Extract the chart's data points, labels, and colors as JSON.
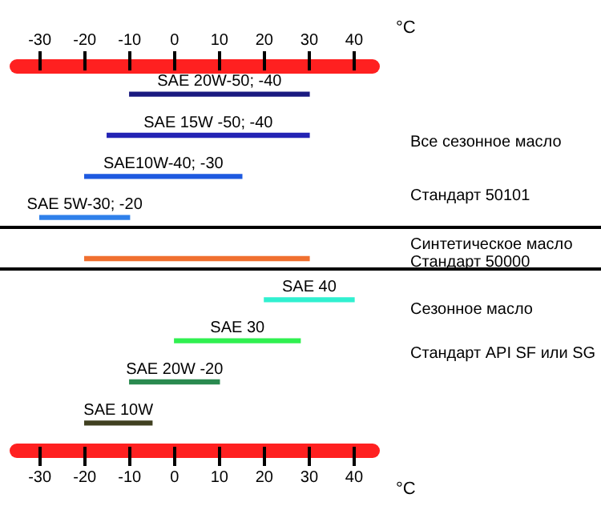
{
  "chart_data": {
    "type": "bar",
    "orientation": "horizontal",
    "categories": [
      "SAE 20W-50; -40",
      "SAE 15W -50; -40",
      "SAE10W-40; -30",
      "SAE 5W-30; -20",
      null,
      "SAE 40",
      "SAE 30",
      "SAE 20W -20",
      "SAE 10W"
    ],
    "base": [
      -10,
      -15,
      -20,
      -10,
      -20,
      20,
      0,
      -10,
      -5
    ],
    "values": [
      40,
      45,
      35,
      -20,
      50,
      20,
      28,
      20,
      -15
    ],
    "colors": [
      "#1a1a80",
      "#2323b4",
      "#1e5ae0",
      "#2f80ea",
      "#f07030",
      "#30f0d0",
      "#30f050",
      "#2a8a50",
      "#404020"
    ],
    "xlim": [
      -36,
      45
    ],
    "xticks": [
      -30,
      -20,
      -10,
      0,
      10,
      20,
      30,
      40
    ],
    "xlabel": "°C",
    "x2lim": [
      -36,
      45
    ],
    "x2ticks": [
      -30,
      -20,
      -10,
      0,
      10,
      20,
      30,
      40
    ],
    "x2label": "°C",
    "annotations": [
      "Все сезонное масло",
      "Стандарт 50101",
      "Синтетическое масло",
      "Стандарт 50000",
      "Сезонное масло",
      "Стандарт API SF или SG"
    ],
    "grid": false,
    "legend": false
  }
}
